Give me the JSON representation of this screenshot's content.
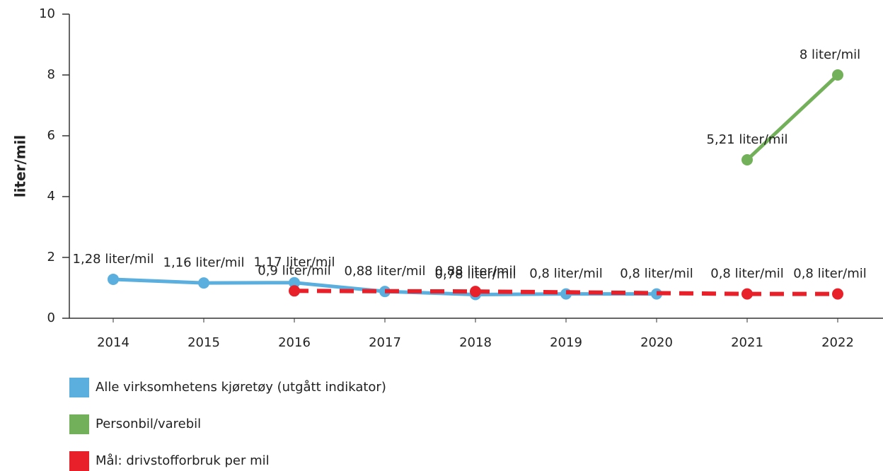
{
  "chart_data": {
    "type": "line",
    "y_label": "liter/mil",
    "xlim": [
      2013.5,
      2022.5
    ],
    "xticks": [
      2014,
      2015,
      2016,
      2017,
      2018,
      2019,
      2020,
      2021,
      2022
    ],
    "ylim": [
      0,
      10
    ],
    "yticks": [
      0,
      2,
      4,
      6,
      8,
      10
    ],
    "grid": false,
    "series": [
      {
        "name": "Alle virksomhetens kjøretøy (utgått indikator)",
        "color": "#5aafdf",
        "dashed": false,
        "x": [
          2014,
          2015,
          2016,
          2017,
          2018,
          2019,
          2020
        ],
        "values": [
          1.28,
          1.16,
          1.17,
          0.88,
          0.78,
          0.8,
          0.8
        ],
        "value_labels": [
          "1,28 liter/mil",
          "1,16 liter/mil",
          "1,17 liter/mil",
          "0,88 liter/mil",
          "0,78 liter/mil",
          "0,8 liter/mil",
          "0,8 liter/mil"
        ]
      },
      {
        "name": "Personbil/varebil",
        "color": "#73b05a",
        "dashed": false,
        "x": [
          2021,
          2022
        ],
        "values": [
          5.21,
          8
        ],
        "value_labels": [
          "5,21 liter/mil",
          "8 liter/mil"
        ]
      },
      {
        "name": "Mål: drivstofforbruk per mil",
        "color": "#e8202a",
        "dashed": true,
        "x": [
          2016,
          2018,
          2021,
          2022
        ],
        "values": [
          0.9,
          0.88,
          0.8,
          0.8
        ],
        "value_labels": [
          "0,9 liter/mil",
          "0,88 liter/mil",
          "0,8 liter/mil",
          "0,8 liter/mil"
        ]
      }
    ]
  }
}
